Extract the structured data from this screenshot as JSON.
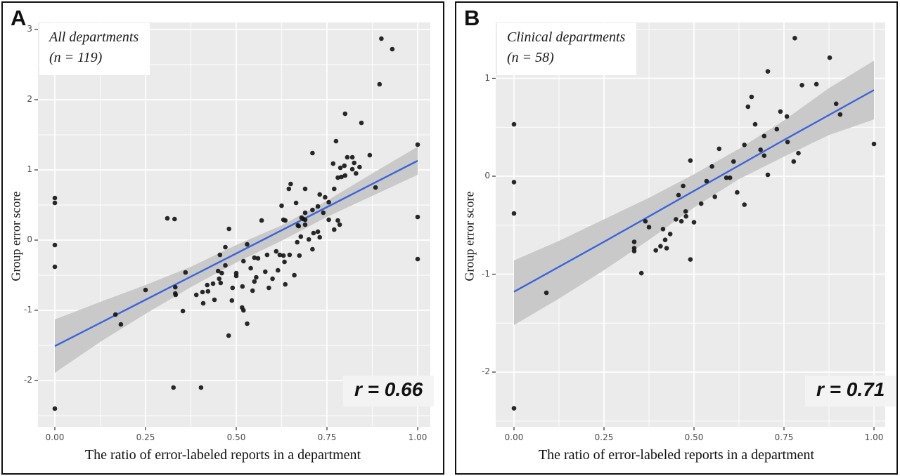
{
  "figure": {
    "panels": [
      {
        "letter": "A",
        "annotation_line1": "All departments",
        "annotation_line2": "(n = 119)",
        "r_label": "r = 0.66",
        "ylabel": "Group error score",
        "xlabel": "The ratio of error-labeled reports in a department"
      },
      {
        "letter": "B",
        "annotation_line1": "Clinical departments",
        "annotation_line2": "(n = 58)",
        "r_label": "r = 0.71",
        "ylabel": "Group error score",
        "xlabel": "The ratio of error-labeled reports in a department"
      }
    ],
    "colors": {
      "plot_background": "#ebebeb",
      "gridline": "#ffffff",
      "point": "#161616",
      "regression_line": "#3c64d9",
      "confidence_band": "#c9c9c9",
      "tick_text": "#4d4d4d"
    }
  },
  "chart_data": [
    {
      "type": "scatter",
      "title": "All departments (n = 119)",
      "n": 119,
      "correlation_label": "r = 0.66",
      "xlabel": "The ratio of error-labeled reports in a department",
      "ylabel": "Group error score",
      "xlim": [
        -0.05,
        1.04
      ],
      "ylim": [
        -2.66,
        3.1
      ],
      "x_ticks": [
        0,
        0.25,
        0.5,
        0.75,
        1.0
      ],
      "x_tick_labels": [
        "0.00",
        "0.25",
        "0.50",
        "0.75",
        "1.00"
      ],
      "y_ticks": [
        3,
        2,
        1,
        0,
        -1,
        -2
      ],
      "y_tick_labels": [
        "3",
        "2",
        "1",
        "0",
        "-1",
        "-2"
      ],
      "x_minor_ticks": [
        0.125,
        0.375,
        0.625,
        0.875
      ],
      "y_minor_ticks": [
        2.5,
        1.5,
        0.5,
        -0.5,
        -1.5,
        -2.5
      ],
      "grid": true,
      "legend": "none",
      "points": [
        [
          0.0,
          0.6
        ],
        [
          0.0,
          0.53
        ],
        [
          0.0,
          -0.07
        ],
        [
          0.0,
          -0.38
        ],
        [
          0.0,
          -2.4
        ],
        [
          0.167,
          -1.06
        ],
        [
          0.182,
          -1.2
        ],
        [
          0.25,
          -0.71
        ],
        [
          0.31,
          0.31
        ],
        [
          0.33,
          0.3
        ],
        [
          0.327,
          -2.1
        ],
        [
          0.332,
          -0.67
        ],
        [
          0.332,
          -0.76
        ],
        [
          0.333,
          -0.78
        ],
        [
          0.353,
          -1.01
        ],
        [
          0.36,
          -0.46
        ],
        [
          0.39,
          -0.78
        ],
        [
          0.403,
          -2.1
        ],
        [
          0.407,
          -0.74
        ],
        [
          0.409,
          -0.9
        ],
        [
          0.42,
          -0.64
        ],
        [
          0.422,
          -0.73
        ],
        [
          0.436,
          -0.62
        ],
        [
          0.44,
          -0.85
        ],
        [
          0.45,
          -0.44
        ],
        [
          0.453,
          -0.55
        ],
        [
          0.455,
          -0.21
        ],
        [
          0.457,
          -0.61
        ],
        [
          0.46,
          -0.47
        ],
        [
          0.47,
          -0.1
        ],
        [
          0.47,
          -0.36
        ],
        [
          0.479,
          -1.36
        ],
        [
          0.48,
          0.16
        ],
        [
          0.488,
          -0.86
        ],
        [
          0.49,
          -0.68
        ],
        [
          0.5,
          -0.47
        ],
        [
          0.5,
          -0.51
        ],
        [
          0.516,
          -0.96
        ],
        [
          0.517,
          -0.66
        ],
        [
          0.52,
          -1.0
        ],
        [
          0.52,
          -0.3
        ],
        [
          0.53,
          -0.06
        ],
        [
          0.53,
          -1.19
        ],
        [
          0.54,
          -0.4
        ],
        [
          0.545,
          -0.72
        ],
        [
          0.55,
          -0.25
        ],
        [
          0.55,
          -0.59
        ],
        [
          0.555,
          -0.53
        ],
        [
          0.56,
          -0.26
        ],
        [
          0.57,
          0.28
        ],
        [
          0.58,
          -0.45
        ],
        [
          0.585,
          -0.21
        ],
        [
          0.59,
          -0.68
        ],
        [
          0.6,
          -0.55
        ],
        [
          0.61,
          -0.16
        ],
        [
          0.615,
          -0.43
        ],
        [
          0.62,
          -0.21
        ],
        [
          0.625,
          0.49
        ],
        [
          0.63,
          -0.22
        ],
        [
          0.63,
          0.29
        ],
        [
          0.633,
          -0.31
        ],
        [
          0.635,
          0.28
        ],
        [
          0.635,
          -0.63
        ],
        [
          0.645,
          0.73
        ],
        [
          0.647,
          -0.21
        ],
        [
          0.65,
          0.8
        ],
        [
          0.66,
          -0.5
        ],
        [
          0.665,
          0.53
        ],
        [
          0.668,
          -0.03
        ],
        [
          0.67,
          0.21
        ],
        [
          0.672,
          0.2
        ],
        [
          0.674,
          -0.22
        ],
        [
          0.678,
          0.05
        ],
        [
          0.68,
          0.32
        ],
        [
          0.685,
          0.3
        ],
        [
          0.69,
          0.22
        ],
        [
          0.69,
          0.29
        ],
        [
          0.69,
          0.39
        ],
        [
          0.69,
          0.73
        ],
        [
          0.7,
          0.01
        ],
        [
          0.71,
          0.43
        ],
        [
          0.71,
          1.24
        ],
        [
          0.71,
          -0.13
        ],
        [
          0.713,
          0.1
        ],
        [
          0.725,
          0.12
        ],
        [
          0.725,
          0.48
        ],
        [
          0.73,
          0.04
        ],
        [
          0.73,
          0.65
        ],
        [
          0.74,
          0.39
        ],
        [
          0.745,
          0.61
        ],
        [
          0.755,
          0.29
        ],
        [
          0.755,
          0.54
        ],
        [
          0.767,
          1.09
        ],
        [
          0.77,
          0.73
        ],
        [
          0.77,
          0.15
        ],
        [
          0.775,
          1.41
        ],
        [
          0.78,
          0.28
        ],
        [
          0.78,
          0.89
        ],
        [
          0.785,
          0.22
        ],
        [
          0.787,
          1.03
        ],
        [
          0.79,
          0.9
        ],
        [
          0.798,
          1.06
        ],
        [
          0.8,
          0.92
        ],
        [
          0.8,
          1.8
        ],
        [
          0.806,
          1.18
        ],
        [
          0.82,
          1.18
        ],
        [
          0.82,
          1.01
        ],
        [
          0.825,
          1.1
        ],
        [
          0.83,
          0.95
        ],
        [
          0.84,
          1.04
        ],
        [
          0.845,
          1.67
        ],
        [
          0.868,
          1.21
        ],
        [
          0.884,
          0.75
        ],
        [
          0.895,
          2.22
        ],
        [
          0.9,
          2.87
        ],
        [
          0.93,
          2.72
        ],
        [
          1.0,
          1.36
        ],
        [
          1.0,
          0.33
        ],
        [
          1.0,
          -0.27
        ]
      ],
      "regression_line": {
        "x": [
          0,
          0.25,
          0.5,
          0.75,
          1.0
        ],
        "y": [
          -1.51,
          -0.85,
          -0.19,
          0.47,
          1.13
        ]
      },
      "confidence_band": [
        [
          0,
          -1.89,
          -1.13
        ],
        [
          0.125,
          -1.45,
          -0.88
        ],
        [
          0.25,
          -1.05,
          -0.64
        ],
        [
          0.375,
          -0.67,
          -0.38
        ],
        [
          0.5,
          -0.32,
          -0.07
        ],
        [
          0.625,
          -0.01,
          0.21
        ],
        [
          0.75,
          0.33,
          0.56
        ],
        [
          0.875,
          0.63,
          0.95
        ],
        [
          1.0,
          0.93,
          1.33
        ]
      ]
    },
    {
      "type": "scatter",
      "title": "Clinical departments (n = 58)",
      "n": 58,
      "correlation_label": "r = 0.71",
      "xlabel": "The ratio of error-labeled reports in a department",
      "ylabel": "Group error score",
      "xlim": [
        -0.05,
        1.04
      ],
      "ylim": [
        -2.56,
        1.57
      ],
      "x_ticks": [
        0,
        0.25,
        0.5,
        0.75,
        1.0
      ],
      "x_tick_labels": [
        "0.00",
        "0.25",
        "0.50",
        "0.75",
        "1.00"
      ],
      "y_ticks": [
        1,
        0,
        -1,
        -2
      ],
      "y_tick_labels": [
        "1",
        "0",
        "-1",
        "-2"
      ],
      "x_minor_ticks": [
        0.125,
        0.375,
        0.625,
        0.875
      ],
      "y_minor_ticks": [
        1.5,
        0.5,
        -0.5,
        -1.5,
        -2.5
      ],
      "grid": true,
      "legend": "none",
      "points": [
        [
          0.0,
          0.53
        ],
        [
          0.0,
          -0.06
        ],
        [
          0.0,
          -0.38
        ],
        [
          0.0,
          -2.37
        ],
        [
          0.09,
          -1.19
        ],
        [
          0.334,
          -0.67
        ],
        [
          0.334,
          -0.735
        ],
        [
          0.334,
          -0.765
        ],
        [
          0.354,
          -0.99
        ],
        [
          0.365,
          -0.46
        ],
        [
          0.375,
          -0.52
        ],
        [
          0.394,
          -0.757
        ],
        [
          0.407,
          -0.715
        ],
        [
          0.414,
          -0.54
        ],
        [
          0.42,
          -0.65
        ],
        [
          0.424,
          -0.735
        ],
        [
          0.434,
          -0.59
        ],
        [
          0.45,
          -0.44
        ],
        [
          0.457,
          -0.193
        ],
        [
          0.465,
          -0.46
        ],
        [
          0.47,
          -0.1
        ],
        [
          0.477,
          -0.36
        ],
        [
          0.478,
          -0.41
        ],
        [
          0.49,
          -0.85
        ],
        [
          0.49,
          0.16
        ],
        [
          0.5,
          -0.47
        ],
        [
          0.52,
          -0.28
        ],
        [
          0.535,
          -0.05
        ],
        [
          0.55,
          0.1
        ],
        [
          0.558,
          -0.21
        ],
        [
          0.57,
          0.28
        ],
        [
          0.59,
          -0.016
        ],
        [
          0.6,
          -0.016
        ],
        [
          0.61,
          0.15
        ],
        [
          0.62,
          -0.165
        ],
        [
          0.64,
          -0.29
        ],
        [
          0.64,
          0.32
        ],
        [
          0.65,
          0.71
        ],
        [
          0.66,
          0.81
        ],
        [
          0.67,
          0.53
        ],
        [
          0.685,
          0.27
        ],
        [
          0.695,
          0.41
        ],
        [
          0.695,
          0.21
        ],
        [
          0.705,
          1.07
        ],
        [
          0.705,
          0.014
        ],
        [
          0.73,
          0.48
        ],
        [
          0.74,
          0.66
        ],
        [
          0.758,
          0.61
        ],
        [
          0.76,
          0.35
        ],
        [
          0.777,
          0.15
        ],
        [
          0.78,
          1.41
        ],
        [
          0.79,
          0.235
        ],
        [
          0.8,
          0.93
        ],
        [
          0.84,
          0.94
        ],
        [
          0.877,
          1.21
        ],
        [
          0.895,
          0.74
        ],
        [
          0.906,
          0.63
        ],
        [
          1.0,
          0.33
        ]
      ],
      "regression_line": {
        "x": [
          0,
          0.25,
          0.5,
          0.75,
          1.0
        ],
        "y": [
          -1.18,
          -0.67,
          -0.15,
          0.37,
          0.88
        ]
      },
      "confidence_band": [
        [
          0,
          -1.52,
          -0.86
        ],
        [
          0.125,
          -1.25,
          -0.66
        ],
        [
          0.25,
          -0.96,
          -0.44
        ],
        [
          0.375,
          -0.65,
          -0.22
        ],
        [
          0.5,
          -0.32,
          0.02
        ],
        [
          0.625,
          -0.03,
          0.28
        ],
        [
          0.75,
          0.2,
          0.57
        ],
        [
          0.875,
          0.42,
          0.9
        ],
        [
          1.0,
          0.58,
          1.18
        ]
      ]
    }
  ]
}
